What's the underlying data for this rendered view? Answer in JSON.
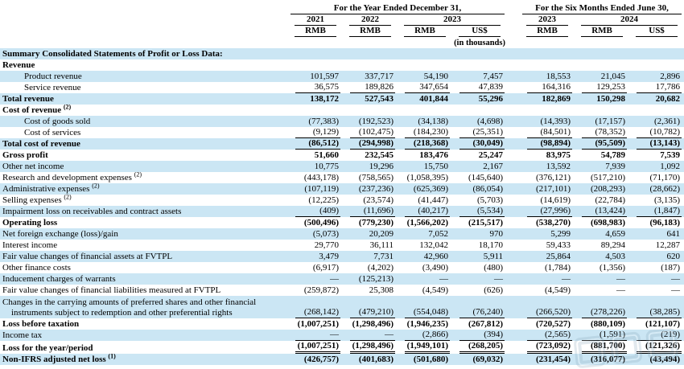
{
  "header": {
    "annual_title": "For the Year Ended December 31,",
    "interim_title": "For the Six Months Ended June 30,",
    "years": [
      "2021",
      "2022",
      "2023",
      "2023",
      "2024"
    ],
    "units": [
      "RMB",
      "RMB",
      "RMB",
      "US$",
      "RMB",
      "RMB",
      "US$"
    ],
    "units_note": "(in thousands)"
  },
  "colors": {
    "row_highlight": "#cbe6f4",
    "text": "#000000",
    "watermark": "#7f9fb3"
  },
  "table": {
    "rows": [
      {
        "label": "Summary Consolidated Statements of Profit or Loss Data:",
        "bold": true,
        "bg": "blue",
        "indent": 0,
        "underline": "none",
        "values": [
          "",
          "",
          "",
          "",
          "",
          "",
          ""
        ]
      },
      {
        "label": "Revenue",
        "bold": true,
        "bg": "white",
        "indent": 0,
        "underline": "none",
        "values": [
          "",
          "",
          "",
          "",
          "",
          "",
          ""
        ]
      },
      {
        "label": "Product revenue",
        "bold": false,
        "bg": "blue",
        "indent": 1,
        "underline": "none",
        "values": [
          "101,597",
          "337,717",
          "54,190",
          "7,457",
          "18,553",
          "21,045",
          "2,896"
        ]
      },
      {
        "label": "Service revenue",
        "bold": false,
        "bg": "white",
        "indent": 1,
        "underline": "single",
        "values": [
          "36,575",
          "189,826",
          "347,654",
          "47,839",
          "164,316",
          "129,253",
          "17,786"
        ]
      },
      {
        "label": "Total revenue",
        "bold": true,
        "bg": "blue",
        "indent": 0,
        "underline": "none",
        "values": [
          "138,172",
          "527,543",
          "401,844",
          "55,296",
          "182,869",
          "150,298",
          "20,682"
        ]
      },
      {
        "label": "Cost of revenue",
        "sup": "(2)",
        "bold": true,
        "bg": "white",
        "indent": 0,
        "underline": "none",
        "values": [
          "",
          "",
          "",
          "",
          "",
          "",
          ""
        ]
      },
      {
        "label": "Cost of goods sold",
        "bold": false,
        "bg": "blue",
        "indent": 1,
        "underline": "none",
        "values": [
          "(77,383)",
          "(192,523)",
          "(34,138)",
          "(4,698)",
          "(14,393)",
          "(17,157)",
          "(2,361)"
        ]
      },
      {
        "label": "Cost of services",
        "bold": false,
        "bg": "white",
        "indent": 1,
        "underline": "single",
        "values": [
          "(9,129)",
          "(102,475)",
          "(184,230)",
          "(25,351)",
          "(84,501)",
          "(78,352)",
          "(10,782)"
        ]
      },
      {
        "label": "Total cost of revenue",
        "bold": true,
        "bg": "blue",
        "indent": 0,
        "underline": "single",
        "values": [
          "(86,512)",
          "(294,998)",
          "(218,368)",
          "(30,049)",
          "(98,894)",
          "(95,509)",
          "(13,143)"
        ]
      },
      {
        "label": "Gross profit",
        "bold": true,
        "bg": "white",
        "indent": 0,
        "underline": "none",
        "values": [
          "51,660",
          "232,545",
          "183,476",
          "25,247",
          "83,975",
          "54,789",
          "7,539"
        ]
      },
      {
        "label": "Other net income",
        "bold": false,
        "bg": "blue",
        "indent": 0,
        "underline": "none",
        "values": [
          "10,775",
          "19,296",
          "15,750",
          "2,167",
          "13,592",
          "7,939",
          "1,092"
        ]
      },
      {
        "label": "Research and development expenses",
        "sup": "(2)",
        "bold": false,
        "bg": "white",
        "indent": 0,
        "underline": "none",
        "values": [
          "(443,178)",
          "(758,565)",
          "(1,058,395)",
          "(145,640)",
          "(376,121)",
          "(517,210)",
          "(71,170)"
        ]
      },
      {
        "label": "Administrative expenses",
        "sup": "(2)",
        "bold": false,
        "bg": "blue",
        "indent": 0,
        "underline": "none",
        "values": [
          "(107,119)",
          "(237,236)",
          "(625,369)",
          "(86,054)",
          "(217,101)",
          "(208,293)",
          "(28,662)"
        ]
      },
      {
        "label": "Selling expenses",
        "sup": "(2)",
        "bold": false,
        "bg": "white",
        "indent": 0,
        "underline": "none",
        "values": [
          "(12,225)",
          "(23,574)",
          "(41,447)",
          "(5,703)",
          "(14,619)",
          "(22,784)",
          "(3,135)"
        ]
      },
      {
        "label": "Impairment loss on receivables and contract assets",
        "bold": false,
        "bg": "blue",
        "indent": 0,
        "underline": "single",
        "values": [
          "(409)",
          "(11,696)",
          "(40,217)",
          "(5,534)",
          "(27,996)",
          "(13,424)",
          "(1,847)"
        ]
      },
      {
        "label": "Operating loss",
        "bold": true,
        "bg": "white",
        "indent": 0,
        "underline": "none",
        "values": [
          "(500,496)",
          "(779,230)",
          "(1,566,202)",
          "(215,517)",
          "(538,270)",
          "(698,983)",
          "(96,183)"
        ]
      },
      {
        "label": "Net foreign exchange (loss)/gain",
        "bold": false,
        "bg": "blue",
        "indent": 0,
        "underline": "none",
        "values": [
          "(5,073)",
          "20,209",
          "7,052",
          "970",
          "5,299",
          "4,659",
          "641"
        ]
      },
      {
        "label": "Interest income",
        "bold": false,
        "bg": "white",
        "indent": 0,
        "underline": "none",
        "values": [
          "29,770",
          "36,111",
          "132,042",
          "18,170",
          "59,433",
          "89,294",
          "12,287"
        ]
      },
      {
        "label": "Fair value changes of financial assets at FVTPL",
        "bold": false,
        "bg": "blue",
        "indent": 0,
        "underline": "none",
        "values": [
          "3,479",
          "7,731",
          "42,960",
          "5,911",
          "25,864",
          "4,503",
          "620"
        ]
      },
      {
        "label": "Other finance costs",
        "bold": false,
        "bg": "white",
        "indent": 0,
        "underline": "none",
        "values": [
          "(6,917)",
          "(4,202)",
          "(3,490)",
          "(480)",
          "(1,784)",
          "(1,356)",
          "(187)"
        ]
      },
      {
        "label": "Inducement charges of warrants",
        "bold": false,
        "bg": "blue",
        "indent": 0,
        "underline": "none",
        "values": [
          "—",
          "(125,213)",
          "—",
          "—",
          "—",
          "—",
          "—"
        ]
      },
      {
        "label": "Fair value changes of financial liabilities measured at FVTPL",
        "bold": false,
        "bg": "white",
        "indent": 0,
        "underline": "none",
        "values": [
          "(259,872)",
          "25,308",
          "(4,549)",
          "(626)",
          "(4,549)",
          "—",
          "—"
        ]
      },
      {
        "label": "Changes in the carrying amounts of preferred shares and other financial instruments subject to redemption and other preferential rights",
        "wrap": true,
        "bold": false,
        "bg": "blue",
        "indent": 0,
        "underline": "single",
        "values": [
          "(268,142)",
          "(479,210)",
          "(554,048)",
          "(76,240)",
          "(266,520)",
          "(278,226)",
          "(38,285)"
        ]
      },
      {
        "label": "Loss before taxation",
        "bold": true,
        "bg": "white",
        "indent": 0,
        "underline": "none",
        "values": [
          "(1,007,251)",
          "(1,298,496)",
          "(1,946,235)",
          "(267,812)",
          "(720,527)",
          "(880,109)",
          "(121,107)"
        ]
      },
      {
        "label": "Income tax",
        "bold": false,
        "bg": "blue",
        "indent": 0,
        "underline": "single",
        "values": [
          "—",
          "—",
          "(2,866)",
          "(394)",
          "(2,565)",
          "(1,591)",
          "(219)"
        ]
      },
      {
        "label": "Loss for the year/period",
        "bold": true,
        "bg": "white",
        "indent": 0,
        "underline": "double",
        "values": [
          "(1,007,251)",
          "(1,298,496)",
          "(1,949,101)",
          "(268,205)",
          "(723,092)",
          "(881,700)",
          "(121,326)"
        ]
      },
      {
        "label": "Non-IFRS adjusted net loss",
        "sup": "(1)",
        "bold": true,
        "bg": "blue",
        "indent": 0,
        "underline": "none",
        "values": [
          "(426,757)",
          "(401,683)",
          "(501,680)",
          "(69,032)",
          "(231,454)",
          "(316,077)",
          "(43,494)"
        ]
      }
    ]
  }
}
